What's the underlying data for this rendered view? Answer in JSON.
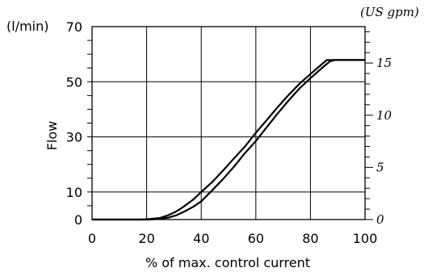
{
  "chart_data": {
    "type": "line",
    "title": "",
    "xlabel": "% of max. control current",
    "ylabel": "Flow",
    "y_unit_left": "(l/min)",
    "y_unit_right": "(US gpm)",
    "xlim": [
      0,
      100
    ],
    "ylim": [
      0,
      70
    ],
    "x_ticks": [
      "0",
      "20",
      "40",
      "60",
      "80",
      "100"
    ],
    "y_ticks_left": [
      "0",
      "10",
      "30",
      "50",
      "70"
    ],
    "y_ticks_right": [
      "0",
      "5",
      "10",
      "15"
    ],
    "y_ticks_right_lpm": [
      0,
      18.93,
      37.85,
      56.78
    ],
    "grid": true,
    "legend": "none",
    "series": [
      {
        "x": [
          0,
          18,
          21,
          25,
          28,
          31,
          34,
          37,
          40,
          44,
          48,
          52,
          56,
          60,
          64,
          68,
          72,
          76,
          80,
          84,
          86,
          88,
          100
        ],
        "values": [
          0,
          0,
          0.2,
          0.6,
          1.6,
          3,
          5,
          7.2,
          10,
          13.6,
          17.8,
          22.2,
          26.5,
          31.5,
          36.1,
          40.8,
          45.2,
          49.3,
          52.8,
          56.2,
          57.9,
          57.9,
          57.9
        ]
      },
      {
        "x": [
          0,
          21,
          24,
          28,
          31,
          34,
          37,
          40,
          44,
          48,
          52,
          56,
          60,
          64,
          68,
          72,
          76,
          80,
          84,
          87,
          89,
          100
        ],
        "values": [
          0,
          0,
          0.2,
          0.7,
          1.6,
          3,
          4.6,
          6.6,
          10.6,
          14.7,
          19.2,
          24.1,
          28.5,
          33.5,
          38.5,
          43.2,
          47.6,
          51.3,
          54.8,
          57.3,
          57.9,
          57.9
        ]
      }
    ]
  }
}
